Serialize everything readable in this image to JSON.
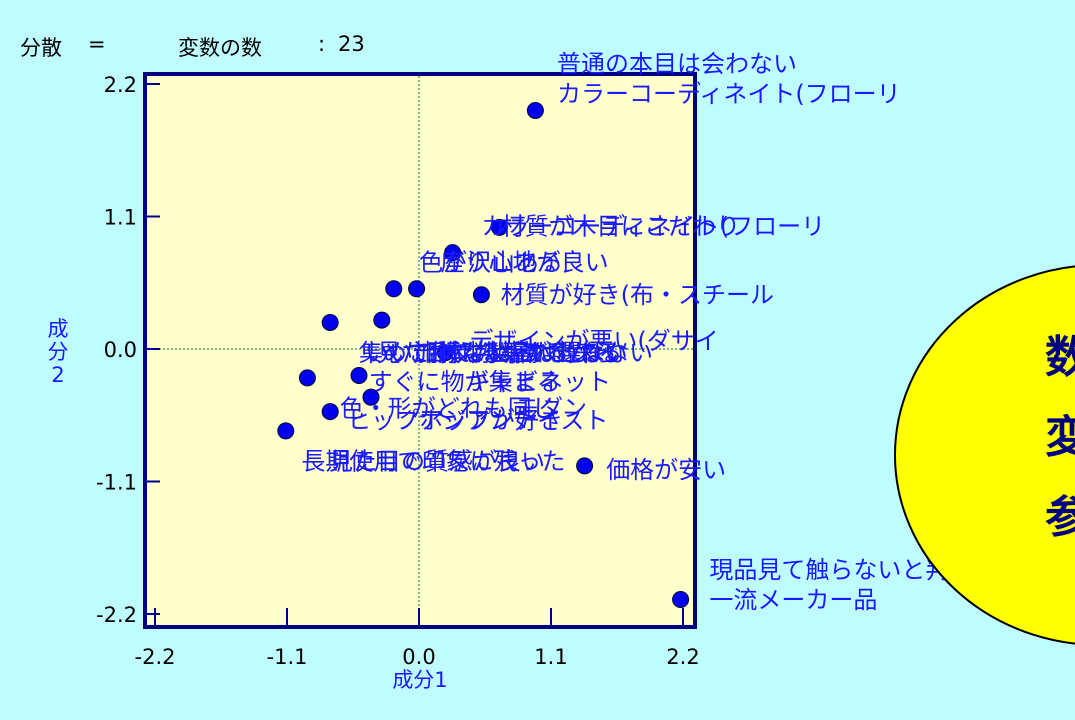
{
  "info": {
    "label": "分散",
    "eq": "=",
    "vars_label": "変数の数",
    "colon": ":",
    "vars_count": "23"
  },
  "side_badge": {
    "chars": [
      "数",
      "変",
      "参"
    ],
    "fill": "#ffff00"
  },
  "colors": {
    "background": "#bffcff",
    "plot_area": "#ffffcc",
    "frame": "#000080",
    "point": "#0000ee",
    "label": "#1a1aff",
    "reference_line": "#2e8b57"
  },
  "chart_data": {
    "type": "scatter",
    "xlabel": "成分1",
    "ylabel_lines": [
      "成分",
      "2"
    ],
    "xlim": [
      -2.2,
      2.2
    ],
    "ylim": [
      -2.2,
      2.2
    ],
    "x_ticks": [
      "-2.2",
      "-1.1",
      "0.0",
      "1.1",
      "2.2"
    ],
    "y_ticks": [
      "2.2",
      "1.1",
      "0.0",
      "-1.1",
      "-2.2"
    ],
    "reference_lines": {
      "x": 0,
      "y": 0
    },
    "points": [
      {
        "x": 0.97,
        "y": 1.98
      },
      {
        "x": 0.67,
        "y": 1.01
      },
      {
        "x": 0.28,
        "y": 0.8
      },
      {
        "x": -0.02,
        "y": 0.5
      },
      {
        "x": -0.21,
        "y": 0.5
      },
      {
        "x": 0.52,
        "y": 0.45
      },
      {
        "x": -0.31,
        "y": 0.24
      },
      {
        "x": -0.74,
        "y": 0.22
      },
      {
        "x": 0.22,
        "y": -0.03
      },
      {
        "x": -0.5,
        "y": -0.22
      },
      {
        "x": -0.93,
        "y": -0.24
      },
      {
        "x": -0.4,
        "y": -0.4
      },
      {
        "x": -0.74,
        "y": -0.52
      },
      {
        "x": -1.11,
        "y": -0.68
      },
      {
        "x": 1.38,
        "y": -0.97
      },
      {
        "x": 2.18,
        "y": -2.08
      }
    ],
    "labels": [
      {
        "text": "普通の本目は会わない",
        "x": 1.15,
        "y": 2.3
      },
      {
        "text": "カラーコーディネイト(フローリ",
        "x": 1.15,
        "y": 2.05
      },
      {
        "text": "カラーコーディネイト(フローリ",
        "x": 0.52,
        "y": 0.95
      },
      {
        "text": "材質が木目にこだわり",
        "x": 0.68,
        "y": 0.95
      },
      {
        "text": "色が沢山ある",
        "x": 0.0,
        "y": 0.65
      },
      {
        "text": "座り心地が良い",
        "x": 0.18,
        "y": 0.65
      },
      {
        "text": "材質が好き(布・スチール",
        "x": 0.68,
        "y": 0.38
      },
      {
        "text": "デザインが悪い(ダサイ",
        "x": 0.42,
        "y": 0.0
      },
      {
        "text": "集めて揃える事が出来る",
        "x": -0.5,
        "y": -0.1
      },
      {
        "text": "いい加減な製品は選ばない",
        "x": -0.45,
        "y": -0.1
      },
      {
        "text": "見た目で判断するから",
        "x": -0.35,
        "y": -0.1
      },
      {
        "text": "流行にとらわれない",
        "x": -0.05,
        "y": -0.1
      },
      {
        "text": "本物は高い",
        "x": 0.2,
        "y": -0.1
      },
      {
        "text": "すぐに物が集まる",
        "x": -0.42,
        "y": -0.34
      },
      {
        "text": "キャビネット",
        "x": 0.4,
        "y": -0.34
      },
      {
        "text": "色・形がどれも同じ",
        "x": -0.66,
        "y": -0.56
      },
      {
        "text": "モダン",
        "x": 0.8,
        "y": -0.56
      },
      {
        "text": "ヒップホップが好き",
        "x": -0.6,
        "y": -0.66
      },
      {
        "text": "アジアンテイスト",
        "x": 0.0,
        "y": -0.66
      },
      {
        "text": "長期使用で印象に残った",
        "x": -0.98,
        "y": -1.0
      },
      {
        "text": "見た目の質感が良い",
        "x": -0.75,
        "y": -1.0
      },
      {
        "text": "価格が安い",
        "x": 1.56,
        "y": -1.07
      },
      {
        "text": "現品見て触らないと判",
        "x": 2.42,
        "y": -1.9
      },
      {
        "text": "一流メーカー品",
        "x": 2.42,
        "y": -2.15
      }
    ]
  }
}
